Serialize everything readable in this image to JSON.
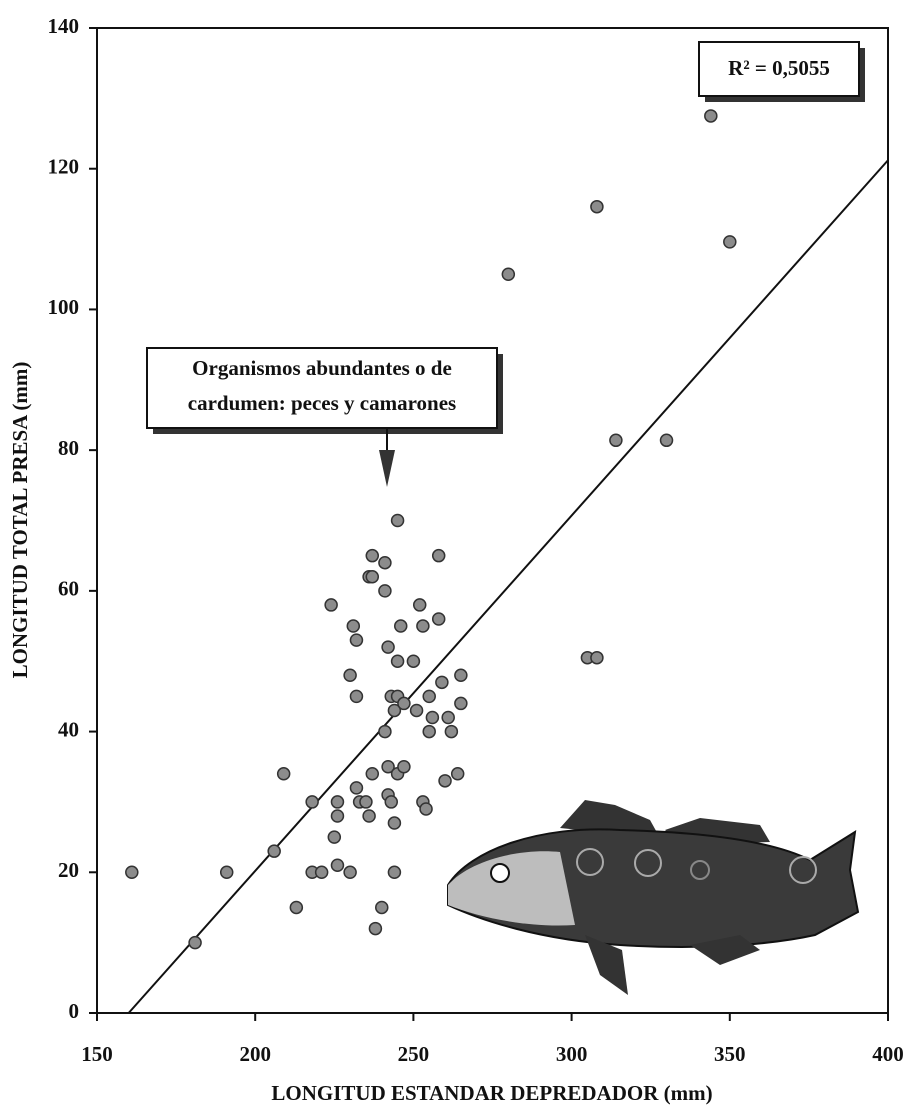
{
  "chart_data": {
    "type": "scatter",
    "x_label": "LONGITUD ESTANDAR DEPREDADOR (mm)",
    "y_label": "LONGITUD TOTAL PRESA (mm)",
    "xlim": [
      150,
      400
    ],
    "xticks": [
      150,
      200,
      250,
      300,
      350,
      400
    ],
    "ylim": [
      0,
      140
    ],
    "yticks": [
      0,
      20,
      40,
      60,
      80,
      100,
      120,
      140
    ],
    "color": "#8c8c8c",
    "r2_label": "R² = 0,5055",
    "annotation": [
      "Organismos abundantes o de",
      "cardumen: peces y camarones"
    ],
    "trendline": {
      "slope": 0.505,
      "intercept": -80.8
    },
    "x": [
      161,
      181,
      191,
      206,
      209,
      213,
      218,
      218,
      221,
      224,
      225,
      226,
      226,
      226,
      230,
      230,
      231,
      232,
      232,
      232,
      233,
      235,
      236,
      236,
      237,
      237,
      237,
      238,
      240,
      241,
      241,
      242,
      241,
      242,
      242,
      243,
      243,
      244,
      244,
      244,
      245,
      245,
      245,
      245,
      246,
      247,
      247,
      250,
      251,
      252,
      253,
      253,
      254,
      255,
      255,
      256,
      258,
      258,
      259,
      260,
      261,
      262,
      264,
      265,
      265,
      280,
      305,
      308,
      308,
      314,
      330,
      344,
      350
    ],
    "values": [
      20,
      10,
      20,
      23,
      34,
      15,
      30,
      20,
      20,
      58,
      25,
      30,
      28,
      21,
      48,
      20,
      55,
      53,
      32,
      45,
      30,
      30,
      28,
      62,
      65,
      62,
      34,
      12,
      15,
      60,
      64,
      52,
      40,
      35,
      31,
      45,
      30,
      20,
      43,
      27,
      70,
      50,
      34,
      45,
      55,
      35,
      44,
      50,
      43,
      58,
      55,
      30,
      29,
      45,
      40,
      42,
      65,
      56,
      47,
      33,
      42,
      40,
      34,
      44,
      48,
      105,
      50.5,
      50.5,
      114.6,
      81.4,
      81.4,
      127.5,
      109.6
    ]
  }
}
